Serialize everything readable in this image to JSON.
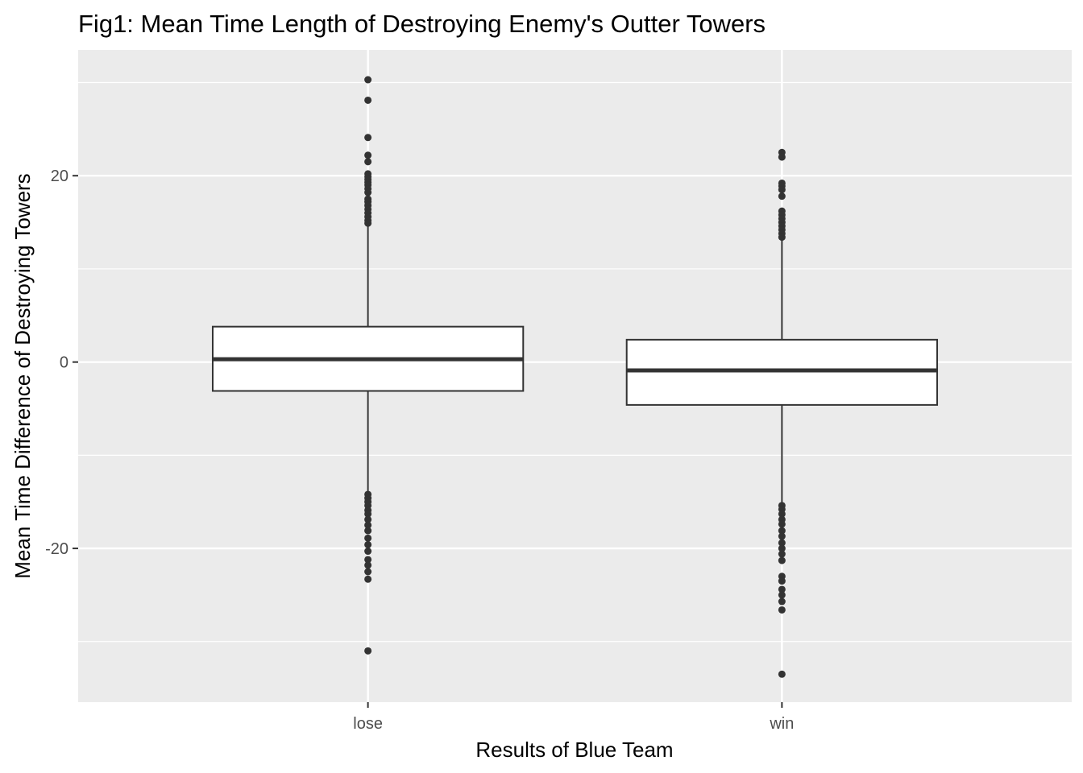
{
  "chart_data": {
    "type": "boxplot",
    "title": "Fig1: Mean Time Length of Destroying Enemy's Outter Towers",
    "xlabel": "Results of Blue Team",
    "ylabel": "Mean Time Difference of Destroying Towers",
    "categories": [
      "lose",
      "win"
    ],
    "y_ticks": [
      -20,
      0,
      20
    ],
    "y_tick_labels": [
      "-20",
      "0",
      "20"
    ],
    "ylim": [
      -36.5,
      33.5
    ],
    "grid": true,
    "colors": {
      "panel_background": "#ebebeb",
      "grid": "#ffffff",
      "box_fill": "#ffffff",
      "box_stroke": "#333333",
      "outlier": "#333333"
    },
    "boxes": [
      {
        "category": "lose",
        "q1": -3.1,
        "median": 0.3,
        "q3": 3.8,
        "whisker_low": -14.0,
        "whisker_high": 14.7,
        "outliers": [
          30.3,
          28.1,
          24.1,
          22.2,
          21.5,
          20.2,
          19.9,
          19.6,
          19.3,
          19.0,
          18.6,
          18.2,
          17.5,
          17.2,
          16.8,
          16.4,
          16.0,
          15.6,
          15.2,
          14.9,
          -14.2,
          -14.6,
          -15.0,
          -15.4,
          -15.9,
          -16.3,
          -16.9,
          -17.5,
          -18.1,
          -18.9,
          -19.6,
          -20.3,
          -21.2,
          -21.8,
          -22.5,
          -23.3,
          -31.0
        ]
      },
      {
        "category": "win",
        "q1": -4.6,
        "median": -0.9,
        "q3": 2.4,
        "whisker_low": -15.2,
        "whisker_high": 13.1,
        "outliers": [
          22.5,
          22.0,
          19.2,
          18.9,
          18.5,
          17.8,
          16.2,
          15.8,
          15.4,
          15.0,
          14.6,
          14.2,
          13.8,
          13.4,
          -15.4,
          -15.8,
          -16.3,
          -16.9,
          -17.4,
          -18.1,
          -18.7,
          -19.4,
          -20.0,
          -20.6,
          -21.3,
          -23.0,
          -23.5,
          -24.4,
          -25.0,
          -25.7,
          -26.6,
          -33.5
        ]
      }
    ]
  }
}
